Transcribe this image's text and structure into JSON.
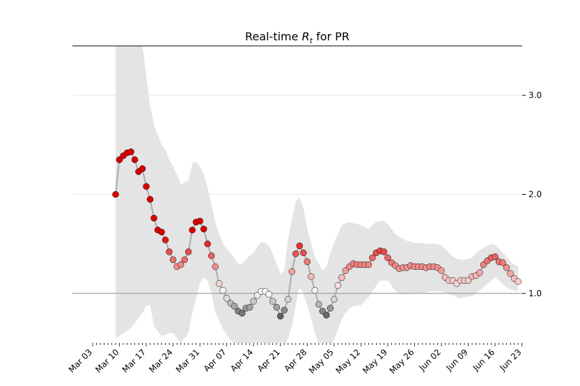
{
  "chart_data": {
    "type": "line",
    "title_parts": [
      "Real-time ",
      "R",
      "t",
      " for PR"
    ],
    "categories": [
      "Mar 03",
      null,
      null,
      null,
      null,
      null,
      null,
      "Mar 10",
      null,
      null,
      null,
      null,
      null,
      null,
      "Mar 17",
      null,
      null,
      null,
      null,
      null,
      null,
      "Mar 24",
      null,
      null,
      null,
      null,
      null,
      null,
      "Mar 31",
      null,
      null,
      null,
      null,
      null,
      null,
      "Apr 07",
      null,
      null,
      null,
      null,
      null,
      null,
      "Apr 14",
      null,
      null,
      null,
      null,
      null,
      null,
      "Apr 21",
      null,
      null,
      null,
      null,
      null,
      null,
      "Apr 28",
      null,
      null,
      null,
      null,
      null,
      null,
      "May 05",
      null,
      null,
      null,
      null,
      null,
      null,
      "May 12",
      null,
      null,
      null,
      null,
      null,
      null,
      "May 19",
      null,
      null,
      null,
      null,
      null,
      null,
      "May 26",
      null,
      null,
      null,
      null,
      null,
      null,
      "Jun 02",
      null,
      null,
      null,
      null,
      null,
      null,
      "Jun 09",
      null,
      null,
      null,
      null,
      null,
      null,
      "Jun 16",
      null,
      null,
      null,
      null,
      null,
      null,
      "Jun 23"
    ],
    "values": [
      null,
      null,
      null,
      null,
      null,
      null,
      2.0,
      2.35,
      2.39,
      2.42,
      2.43,
      2.35,
      2.23,
      2.26,
      2.08,
      1.95,
      1.76,
      1.64,
      1.62,
      1.54,
      1.42,
      1.34,
      1.27,
      1.29,
      1.34,
      1.42,
      1.64,
      1.72,
      1.73,
      1.65,
      1.5,
      1.38,
      1.27,
      1.1,
      1.03,
      0.95,
      0.9,
      0.87,
      0.82,
      0.8,
      0.85,
      0.86,
      0.92,
      0.98,
      1.02,
      1.02,
      0.99,
      0.92,
      0.86,
      0.77,
      0.83,
      0.94,
      1.22,
      1.4,
      1.48,
      1.41,
      1.32,
      1.17,
      1.03,
      0.89,
      0.82,
      0.78,
      0.85,
      0.94,
      1.08,
      1.16,
      1.23,
      1.27,
      1.3,
      1.29,
      1.29,
      1.29,
      1.29,
      1.36,
      1.41,
      1.43,
      1.42,
      1.36,
      1.31,
      1.28,
      1.25,
      1.26,
      1.26,
      1.28,
      1.27,
      1.27,
      1.27,
      1.26,
      1.27,
      1.27,
      1.26,
      1.23,
      1.16,
      1.13,
      1.13,
      1.1,
      1.13,
      1.13,
      1.13,
      1.17,
      1.18,
      1.21,
      1.29,
      1.33,
      1.36,
      1.37,
      1.32,
      1.31,
      1.26,
      1.2,
      1.15,
      1.12,
      null
    ],
    "upper": [
      null,
      null,
      null,
      null,
      null,
      null,
      4.5,
      4.4,
      4.3,
      4.2,
      4.1,
      4.0,
      3.8,
      3.5,
      3.2,
      2.9,
      2.7,
      2.6,
      2.5,
      2.45,
      2.35,
      2.28,
      2.2,
      2.1,
      2.12,
      2.14,
      2.31,
      2.33,
      2.28,
      2.2,
      2.07,
      1.9,
      1.72,
      1.6,
      1.51,
      1.45,
      1.41,
      1.35,
      1.3,
      1.3,
      1.34,
      1.38,
      1.41,
      1.47,
      1.52,
      1.51,
      1.48,
      1.4,
      1.3,
      1.2,
      1.23,
      1.55,
      1.75,
      1.93,
      1.97,
      1.86,
      1.65,
      1.5,
      1.37,
      1.3,
      1.23,
      1.27,
      1.4,
      1.51,
      1.6,
      1.69,
      1.71,
      1.72,
      1.71,
      1.7,
      1.69,
      1.67,
      1.65,
      1.69,
      1.72,
      1.73,
      1.73,
      1.7,
      1.65,
      1.6,
      1.57,
      1.55,
      1.53,
      1.52,
      1.51,
      1.51,
      1.51,
      1.5,
      1.5,
      1.5,
      1.5,
      1.48,
      1.45,
      1.41,
      1.37,
      1.35,
      1.34,
      1.34,
      1.35,
      1.36,
      1.4,
      1.44,
      1.46,
      1.48,
      1.5,
      1.49,
      1.45,
      1.41,
      1.37,
      1.32,
      1.29,
      1.27,
      null
    ],
    "lower": [
      null,
      null,
      null,
      null,
      null,
      null,
      0.55,
      0.57,
      0.6,
      0.62,
      0.65,
      0.7,
      0.75,
      0.8,
      0.88,
      0.88,
      0.67,
      0.62,
      0.57,
      0.58,
      0.6,
      0.6,
      0.55,
      0.5,
      0.55,
      0.6,
      0.8,
      0.95,
      1.1,
      1.16,
      1.13,
      1.0,
      0.81,
      0.72,
      0.64,
      0.58,
      0.53,
      0.48,
      0.43,
      0.41,
      0.4,
      0.39,
      0.39,
      0.4,
      0.41,
      0.4,
      0.39,
      0.38,
      0.37,
      0.36,
      0.45,
      0.55,
      0.67,
      0.88,
      1.06,
      1.0,
      0.88,
      0.75,
      0.6,
      0.5,
      0.42,
      0.39,
      0.45,
      0.53,
      0.64,
      0.74,
      0.8,
      0.85,
      0.87,
      0.88,
      0.88,
      0.92,
      0.96,
      1.02,
      1.08,
      1.13,
      1.13,
      1.13,
      1.08,
      1.02,
      1.0,
      0.99,
      0.99,
      1.0,
      1.0,
      1.0,
      1.0,
      1.01,
      1.02,
      1.02,
      1.02,
      1.02,
      1.0,
      0.99,
      0.98,
      0.96,
      0.95,
      0.96,
      0.97,
      0.97,
      1.0,
      1.03,
      1.06,
      1.1,
      1.13,
      1.16,
      1.13,
      1.09,
      1.06,
      1.04,
      1.03,
      1.02,
      null
    ],
    "ylim": [
      0.5,
      3.5
    ],
    "yticks": [
      {
        "value": 1,
        "label": "1.0"
      },
      {
        "value": 2,
        "label": "2.0"
      },
      {
        "value": 3,
        "label": "3.0"
      }
    ],
    "reference_line": 1,
    "grid": true,
    "colors": {
      "line": "#aaaaaa",
      "band": "#e4e4e4",
      "high": "#dd0000",
      "mid": "#ffffff",
      "low": "#555555"
    }
  }
}
